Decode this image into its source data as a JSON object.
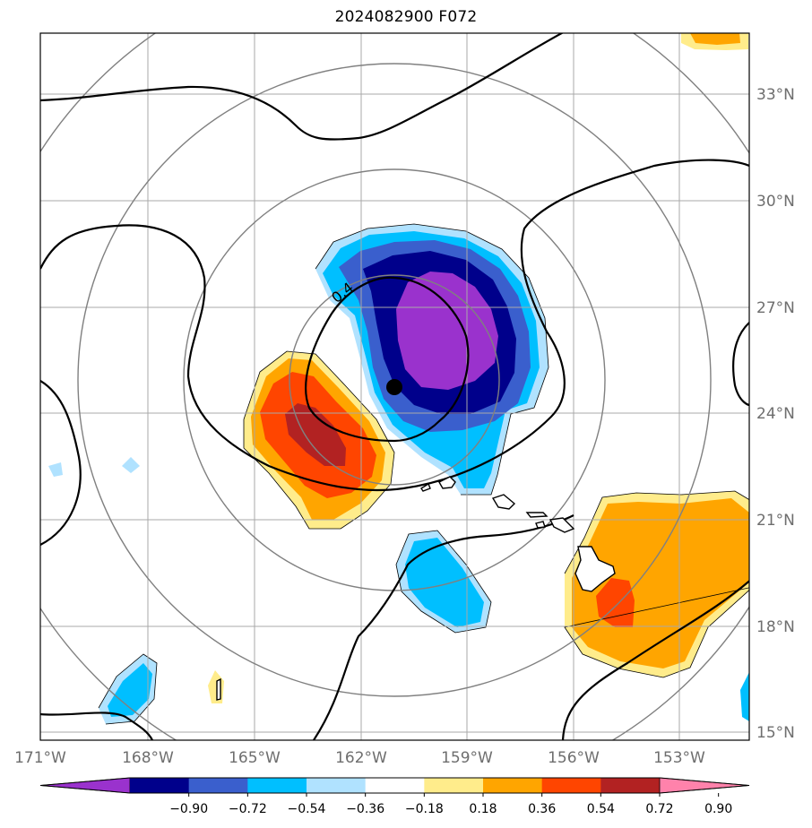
{
  "title": "2024082900 F072",
  "lon_labels": [
    "171°W",
    "168°W",
    "165°W",
    "162°W",
    "159°W",
    "156°W",
    "153°W"
  ],
  "lat_labels": [
    "33°N",
    "30°N",
    "27°N",
    "24°N",
    "21°N",
    "18°N",
    "15°N"
  ],
  "contour_label": "0.4",
  "colorbar": {
    "tick_labels": [
      "−0.90",
      "−0.72",
      "−0.54",
      "−0.36",
      "−0.18",
      "0.18",
      "0.36",
      "0.54",
      "0.72",
      "0.90"
    ],
    "colors": [
      "#9a32cd",
      "#00008b",
      "#3a5fcd",
      "#00bfff",
      "#b0e2ff",
      "#ffffff",
      "#ffec8b",
      "#ffa500",
      "#ff4500",
      "#b22222",
      "#ff82ab"
    ]
  },
  "map": {
    "lon_range": [
      -171,
      -151
    ],
    "lat_range": [
      14.7,
      34.7
    ],
    "storm_center": {
      "lon": -161.0,
      "lat": 24.7
    }
  }
}
